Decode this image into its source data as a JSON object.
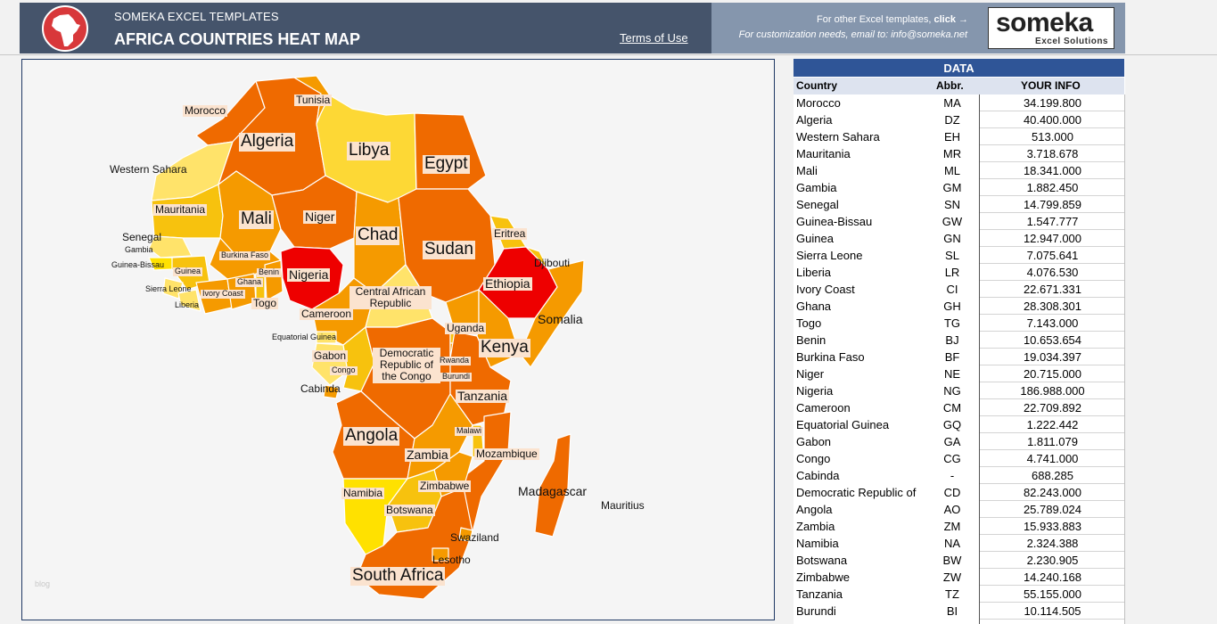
{
  "header": {
    "brand": "SOMEKA EXCEL TEMPLATES",
    "title": "AFRICA COUNTRIES HEAT MAP",
    "terms": "Terms of Use",
    "other_templates": "For other Excel templates,",
    "click": "click →",
    "customization": "For customization needs, email to: info@someka.net",
    "logo_name": "someka",
    "logo_sub": "Excel Solutions"
  },
  "map": {
    "watermark": "blog",
    "labels": {
      "morocco": "Morocco",
      "tunisia": "Tunisia",
      "algeria": "Algeria",
      "libya": "Libya",
      "egypt": "Egypt",
      "western_sahara": "Western Sahara",
      "mauritania": "Mauritania",
      "mali": "Mali",
      "niger": "Niger",
      "chad": "Chad",
      "sudan": "Sudan",
      "eritrea": "Eritrea",
      "senegal": "Senegal",
      "gambia": "Gambia",
      "guinea_bissau": "Guinea-Bissau",
      "guinea": "Guinea",
      "burkina_faso": "Burkina Faso",
      "benin": "Benin",
      "nigeria": "Nigeria",
      "djibouti": "Djibouti",
      "ethiopia": "Ethiopia",
      "sierra_leone": "Sierra Leone",
      "ivory_coast": "Ivory Coast",
      "ghana": "Ghana",
      "togo": "Togo",
      "liberia": "Liberia",
      "car": "Central African Republic",
      "cameroon": "Cameroon",
      "somalia": "Somalia",
      "equatorial_guinea": "Equatorial Guinea",
      "uganda": "Uganda",
      "kenya": "Kenya",
      "gabon": "Gabon",
      "drc": "Democratic Republic of the Congo",
      "rwanda": "Rwanda",
      "congo": "Congo",
      "burundi": "Burundi",
      "cabinda": "Cabinda",
      "tanzania": "Tanzania",
      "angola": "Angola",
      "malawi": "Malawi",
      "zambia": "Zambia",
      "mozambique": "Mozambique",
      "namibia": "Namibia",
      "zimbabwe": "Zimbabwe",
      "madagascar": "Madagascar",
      "mauritius": "Mauritius",
      "botswana": "Botswana",
      "swaziland": "Swaziland",
      "lesotho": "Lesotho",
      "south_africa": "South Africa"
    },
    "heat_colors": {
      "high": "#ee0000",
      "upper": "#ef6a00",
      "mid": "#f59a00",
      "low": "#f7c20e",
      "lowest": "#ffe100"
    }
  },
  "table": {
    "title": "DATA",
    "col_country": "Country",
    "col_abbr": "Abbr.",
    "col_info": "YOUR INFO",
    "rows": [
      {
        "country": "Morocco",
        "abbr": "MA",
        "value": "34.199.800"
      },
      {
        "country": "Algeria",
        "abbr": "DZ",
        "value": "40.400.000"
      },
      {
        "country": "Western Sahara",
        "abbr": "EH",
        "value": "513.000"
      },
      {
        "country": "Mauritania",
        "abbr": "MR",
        "value": "3.718.678"
      },
      {
        "country": "Mali",
        "abbr": "ML",
        "value": "18.341.000"
      },
      {
        "country": "Gambia",
        "abbr": "GM",
        "value": "1.882.450"
      },
      {
        "country": "Senegal",
        "abbr": "SN",
        "value": "14.799.859"
      },
      {
        "country": "Guinea-Bissau",
        "abbr": "GW",
        "value": "1.547.777"
      },
      {
        "country": "Guinea",
        "abbr": "GN",
        "value": "12.947.000"
      },
      {
        "country": "Sierra Leone",
        "abbr": "SL",
        "value": "7.075.641"
      },
      {
        "country": "Liberia",
        "abbr": "LR",
        "value": "4.076.530"
      },
      {
        "country": "Ivory Coast",
        "abbr": "CI",
        "value": "22.671.331"
      },
      {
        "country": "Ghana",
        "abbr": "GH",
        "value": "28.308.301"
      },
      {
        "country": "Togo",
        "abbr": "TG",
        "value": "7.143.000"
      },
      {
        "country": "Benin",
        "abbr": "BJ",
        "value": "10.653.654"
      },
      {
        "country": "Burkina Faso",
        "abbr": "BF",
        "value": "19.034.397"
      },
      {
        "country": "Niger",
        "abbr": "NE",
        "value": "20.715.000"
      },
      {
        "country": "Nigeria",
        "abbr": "NG",
        "value": "186.988.000"
      },
      {
        "country": "Cameroon",
        "abbr": "CM",
        "value": "22.709.892"
      },
      {
        "country": "Equatorial Guinea",
        "abbr": "GQ",
        "value": "1.222.442"
      },
      {
        "country": "Gabon",
        "abbr": "GA",
        "value": "1.811.079"
      },
      {
        "country": "Congo",
        "abbr": "CG",
        "value": "4.741.000"
      },
      {
        "country": "Cabinda",
        "abbr": "-",
        "value": "688.285"
      },
      {
        "country": "Democratic Republic of",
        "abbr": "CD",
        "value": "82.243.000"
      },
      {
        "country": "Angola",
        "abbr": "AO",
        "value": "25.789.024"
      },
      {
        "country": "Zambia",
        "abbr": "ZM",
        "value": "15.933.883"
      },
      {
        "country": "Namibia",
        "abbr": "NA",
        "value": "2.324.388"
      },
      {
        "country": "Botswana",
        "abbr": "BW",
        "value": "2.230.905"
      },
      {
        "country": "Zimbabwe",
        "abbr": "ZW",
        "value": "14.240.168"
      },
      {
        "country": "Tanzania",
        "abbr": "TZ",
        "value": "55.155.000"
      },
      {
        "country": "Burundi",
        "abbr": "BI",
        "value": "10.114.505"
      }
    ]
  }
}
